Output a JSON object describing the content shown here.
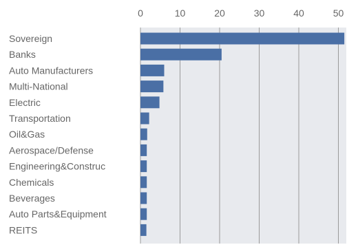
{
  "chart_data": {
    "type": "bar",
    "orientation": "horizontal",
    "categories": [
      "Sovereign",
      "Banks",
      "Auto Manufacturers",
      "Multi-National",
      "Electric",
      "Transportation",
      "Oil&Gas",
      "Aerospace/Defense",
      "Engineering&Construc",
      "Chemicals",
      "Beverages",
      "Auto Parts&Equipment",
      "REITS"
    ],
    "values": [
      51.5,
      20.5,
      6.0,
      5.8,
      4.8,
      2.2,
      1.7,
      1.6,
      1.6,
      1.6,
      1.6,
      1.6,
      1.5
    ],
    "xlim": [
      0,
      52
    ],
    "xticks": [
      0,
      10,
      20,
      30,
      40,
      50
    ],
    "tick_labels": [
      "0",
      "10",
      "20",
      "30",
      "40",
      "50"
    ],
    "axis_position": "top",
    "grid": true,
    "title": "",
    "xlabel": "",
    "ylabel": "",
    "colors": {
      "bar": "#4a6fa5",
      "plot_background": "#e8eaee",
      "grid": "#9a9a9a",
      "text": "#666666"
    }
  }
}
